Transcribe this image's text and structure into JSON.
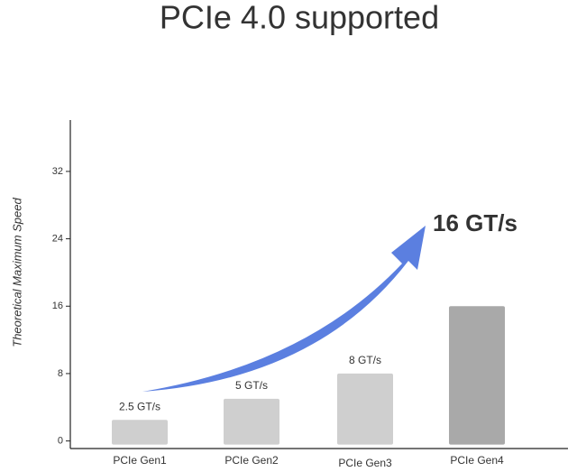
{
  "chart_data": {
    "type": "bar",
    "title": "PCIe 4.0 supported",
    "y_label": "Theoretical Maximum Speed",
    "categories": [
      "PCIe Gen1",
      "PCIe Gen2",
      "PCIe Gen3",
      "PCIe Gen4"
    ],
    "values": [
      2.5,
      5,
      8,
      16
    ],
    "value_labels": [
      "2.5 GT/s",
      "5 GT/s",
      "8 GT/s",
      "16 GT/s"
    ],
    "colors": [
      "#cfcfcf",
      "#cfcfcf",
      "#cfcfcf",
      "#a9a9a9"
    ],
    "ylim": [
      -0.9,
      38.1
    ],
    "yticks": [
      0,
      8,
      16,
      24,
      32
    ]
  }
}
